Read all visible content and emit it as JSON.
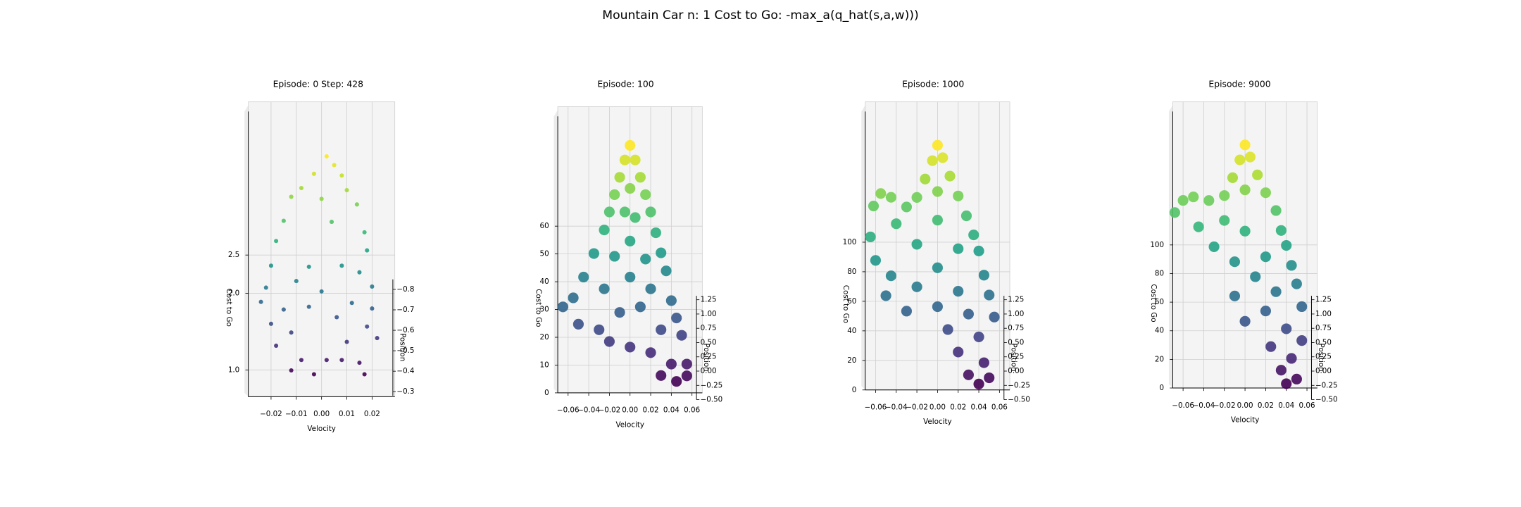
{
  "title": "Mountain Car n: 1 Cost to Go: -max_a(q_hat(s,a,w)))",
  "chart_data": [
    {
      "type": "scatter3d",
      "title": "Episode: 0 Step: 428",
      "xlabel": "Velocity",
      "ylabel": "Position",
      "zlabel": "Cost to Go",
      "xlim": [
        -0.029,
        0.029
      ],
      "ylim": [
        -0.28,
        -0.83
      ],
      "zlim": [
        0.65,
        4.5
      ],
      "xticks": [
        {
          "value": -0.02,
          "label": "−0.02"
        },
        {
          "value": -0.01,
          "label": "−0.01"
        },
        {
          "value": 0,
          "label": "0.00"
        },
        0.01,
        0.02
      ],
      "yticks": [
        {
          "value": -0.8,
          "label": "−0.8"
        },
        {
          "value": -0.7,
          "label": "−0.7"
        },
        {
          "value": -0.6,
          "label": "−0.6"
        },
        {
          "value": -0.5,
          "label": "−0.5"
        },
        {
          "value": -0.4,
          "label": "−0.4"
        },
        {
          "value": -0.3,
          "label": "−0.3"
        }
      ],
      "zticks": [
        {
          "value": 1,
          "label": "1.0"
        },
        {
          "value": 2,
          "label": "2.0"
        },
        2.5
      ],
      "x": [
        0.002,
        0.005,
        -0.003,
        0.008,
        -0.008,
        0.01,
        -0.012,
        0.0,
        0.014,
        -0.015,
        0.004,
        0.017,
        -0.018,
        0.018,
        -0.02,
        0.008,
        -0.005,
        0.015,
        -0.022,
        0.02,
        -0.01,
        0.0,
        -0.024,
        0.012,
        -0.015,
        0.02,
        -0.005,
        0.006,
        -0.02,
        0.018,
        -0.012,
        0.022,
        -0.018,
        0.01,
        -0.008,
        0.002,
        0.008,
        0.015,
        -0.012,
        0.017,
        -0.003
      ],
      "y": [
        -0.6,
        -0.55,
        -0.5,
        -0.6,
        -0.55,
        -0.45,
        -0.5,
        -0.4,
        -0.5,
        -0.45,
        -0.4,
        -0.45,
        -0.4,
        -0.5,
        -0.5,
        -0.5,
        -0.45,
        -0.55,
        -0.55,
        -0.6,
        -0.5,
        -0.55,
        -0.6,
        -0.55,
        -0.6,
        -0.65,
        -0.55,
        -0.6,
        -0.65,
        -0.7,
        -0.6,
        -0.7,
        -0.7,
        -0.7,
        -0.75,
        -0.75,
        -0.75,
        -0.8,
        -0.8,
        -0.8,
        -0.8
      ],
      "z": [
        3.7,
        3.6,
        3.5,
        3.45,
        3.3,
        3.3,
        3.2,
        3.2,
        3.1,
        2.9,
        2.9,
        2.75,
        2.65,
        2.5,
        2.3,
        2.3,
        2.3,
        2.2,
        2.0,
        2.0,
        2.1,
        1.95,
        1.8,
        1.8,
        1.7,
        1.7,
        1.75,
        1.6,
        1.5,
        1.45,
        1.4,
        1.3,
        1.2,
        1.25,
        1.0,
        1.0,
        1.0,
        0.95,
        0.85,
        0.8,
        0.8
      ]
    },
    {
      "type": "scatter3d",
      "title": "Episode: 100",
      "xlabel": "Velocity",
      "ylabel": "Position",
      "zlabel": "Cost to Go",
      "xlim": [
        -0.07,
        0.07
      ],
      "ylim": [
        -0.5,
        1.25
      ],
      "zlim": [
        0,
        103
      ],
      "xticks": [
        {
          "value": -0.06,
          "label": "−0.06"
        },
        {
          "value": -0.04,
          "label": "−0.04"
        },
        {
          "value": -0.02,
          "label": "−0.02"
        },
        {
          "value": 0,
          "label": "0.00"
        },
        0.02,
        0.04,
        0.06
      ],
      "yticks": [
        {
          "value": -0.5,
          "label": "−0.50"
        },
        {
          "value": -0.25,
          "label": "−0.25"
        },
        {
          "value": 0,
          "label": "0.00"
        },
        0.25,
        {
          "value": 0.5,
          "label": "0.50"
        },
        0.75,
        {
          "value": 1,
          "label": "1.00"
        },
        1.25
      ],
      "zticks": [
        0,
        10,
        20,
        30,
        40,
        50,
        60
      ],
      "x": [
        0,
        0.005,
        -0.005,
        0.01,
        -0.01,
        0.015,
        -0.015,
        0.0,
        0.02,
        -0.02,
        0.005,
        -0.005,
        0.025,
        -0.025,
        0.0,
        0.03,
        -0.035,
        0.015,
        -0.015,
        0.035,
        -0.045,
        0.0,
        0.02,
        -0.025,
        0.04,
        -0.055,
        -0.065,
        0.01,
        -0.01,
        0.045,
        -0.05,
        -0.03,
        0.03,
        0.05,
        -0.02,
        0.0,
        0.02,
        0.04,
        0.055,
        0.03,
        0.045,
        0.055
      ],
      "y": [
        1.2,
        1.1,
        1.1,
        1.0,
        1.0,
        0.9,
        0.9,
        1.0,
        0.8,
        0.8,
        0.8,
        0.8,
        0.6,
        0.6,
        0.6,
        0.5,
        0.4,
        0.4,
        0.4,
        0.3,
        0.2,
        0.2,
        0.1,
        0.1,
        0.0,
        0.0,
        -0.1,
        -0.1,
        -0.1,
        -0.1,
        -0.2,
        -0.2,
        -0.2,
        -0.2,
        -0.3,
        -0.3,
        -0.3,
        -0.35,
        -0.35,
        -0.4,
        -0.45,
        -0.45
      ],
      "z": [
        85,
        80,
        80,
        74,
        74,
        68,
        68,
        70,
        62,
        62,
        60,
        62,
        55,
        56,
        52,
        48,
        48,
        46,
        47,
        42,
        40,
        40,
        36,
        36,
        32,
        33,
        30,
        30,
        28,
        26,
        24,
        22,
        22,
        20,
        18,
        16,
        14,
        10,
        10,
        6,
        4,
        6
      ]
    },
    {
      "type": "scatter3d",
      "title": "Episode: 1000",
      "xlabel": "Velocity",
      "ylabel": "Position",
      "zlabel": "Cost to Go",
      "xlim": [
        -0.07,
        0.07
      ],
      "ylim": [
        -0.5,
        1.25
      ],
      "zlim": [
        0,
        195
      ],
      "xticks": [
        {
          "value": -0.06,
          "label": "−0.06"
        },
        {
          "value": -0.04,
          "label": "−0.04"
        },
        {
          "value": -0.02,
          "label": "−0.02"
        },
        {
          "value": 0,
          "label": "0.00"
        },
        0.02,
        0.04,
        0.06
      ],
      "yticks": [
        {
          "value": -0.5,
          "label": "−0.50"
        },
        {
          "value": -0.25,
          "label": "−0.25"
        },
        {
          "value": 0,
          "label": "0.00"
        },
        0.25,
        {
          "value": 0.5,
          "label": "0.50"
        },
        0.75,
        {
          "value": 1,
          "label": "1.00"
        },
        1.25
      ],
      "zticks": [
        0,
        20,
        40,
        60,
        80,
        100
      ],
      "x": [
        0,
        0.005,
        -0.005,
        0.012,
        -0.012,
        0.02,
        -0.02,
        0,
        0.028,
        -0.03,
        -0.045,
        -0.055,
        -0.062,
        0.035,
        0.0,
        -0.04,
        0.04,
        -0.065,
        0.02,
        -0.02,
        -0.06,
        0.045,
        0.0,
        -0.045,
        0.05,
        0.02,
        -0.02,
        -0.05,
        0.055,
        0.03,
        -0.03,
        0.0,
        0.01,
        0.04,
        0.02,
        0.045,
        0.03,
        0.05,
        0.04
      ],
      "y": [
        1.2,
        1.1,
        1.1,
        1.0,
        1.0,
        0.9,
        0.9,
        0.9,
        0.8,
        0.8,
        0.7,
        0.6,
        0.5,
        0.6,
        0.6,
        0.5,
        0.4,
        0.3,
        0.3,
        0.3,
        0.1,
        0.1,
        0.1,
        0.0,
        0.0,
        -0.1,
        -0.1,
        -0.1,
        -0.2,
        -0.2,
        -0.2,
        -0.2,
        -0.3,
        -0.3,
        -0.35,
        -0.4,
        -0.45,
        -0.45,
        -0.5
      ],
      "z": [
        158,
        150,
        148,
        138,
        136,
        125,
        124,
        128,
        112,
        118,
        125,
        128,
        120,
        100,
        110,
        108,
        90,
        100,
        92,
        95,
        85,
        75,
        80,
        75,
        62,
        65,
        68,
        62,
        48,
        50,
        52,
        55,
        40,
        35,
        25,
        18,
        10,
        8,
        4
      ]
    },
    {
      "type": "scatter3d",
      "title": "Episode: 9000",
      "xlabel": "Velocity",
      "ylabel": "Position",
      "zlabel": "Cost to Go",
      "xlim": [
        -0.07,
        0.07
      ],
      "ylim": [
        -0.5,
        1.25
      ],
      "zlim": [
        0,
        200
      ],
      "xticks": [
        {
          "value": -0.06,
          "label": "−0.06"
        },
        {
          "value": -0.04,
          "label": "−0.04"
        },
        {
          "value": -0.02,
          "label": "−0.02"
        },
        {
          "value": 0,
          "label": "0.00"
        },
        0.02,
        0.04,
        0.06
      ],
      "yticks": [
        {
          "value": -0.5,
          "label": "−0.50"
        },
        {
          "value": -0.25,
          "label": "−0.25"
        },
        {
          "value": 0,
          "label": "0.00"
        },
        0.25,
        {
          "value": 0.5,
          "label": "0.50"
        },
        0.75,
        {
          "value": 1,
          "label": "1.00"
        },
        1.25
      ],
      "zticks": [
        0,
        20,
        40,
        60,
        80,
        100
      ],
      "x": [
        0,
        0.005,
        -0.005,
        0.012,
        -0.012,
        0.02,
        0.0,
        -0.02,
        0.03,
        -0.035,
        -0.05,
        -0.06,
        -0.068,
        0.035,
        -0.02,
        -0.045,
        0.04,
        0.0,
        -0.03,
        0.045,
        0.02,
        -0.01,
        0.05,
        0.01,
        0.03,
        -0.01,
        0.055,
        0.02,
        0.0,
        0.04,
        0.055,
        0.025,
        0.045,
        0.035,
        0.05,
        0.04
      ],
      "y": [
        1.2,
        1.1,
        1.1,
        1.0,
        1.0,
        0.9,
        0.9,
        0.9,
        0.8,
        0.8,
        0.7,
        0.6,
        0.5,
        0.6,
        0.6,
        0.5,
        0.5,
        0.5,
        0.3,
        0.3,
        0.3,
        0.2,
        0.1,
        0.1,
        0.0,
        0.0,
        -0.1,
        -0.1,
        -0.15,
        -0.2,
        -0.25,
        -0.3,
        -0.35,
        -0.4,
        -0.45,
        -0.5
      ],
      "z": [
        162,
        154,
        152,
        142,
        140,
        130,
        132,
        128,
        118,
        125,
        128,
        126,
        118,
        105,
        112,
        108,
        95,
        105,
        95,
        82,
        88,
        85,
        70,
        75,
        65,
        62,
        55,
        52,
        45,
        40,
        32,
        28,
        20,
        12,
        6,
        3
      ]
    }
  ]
}
